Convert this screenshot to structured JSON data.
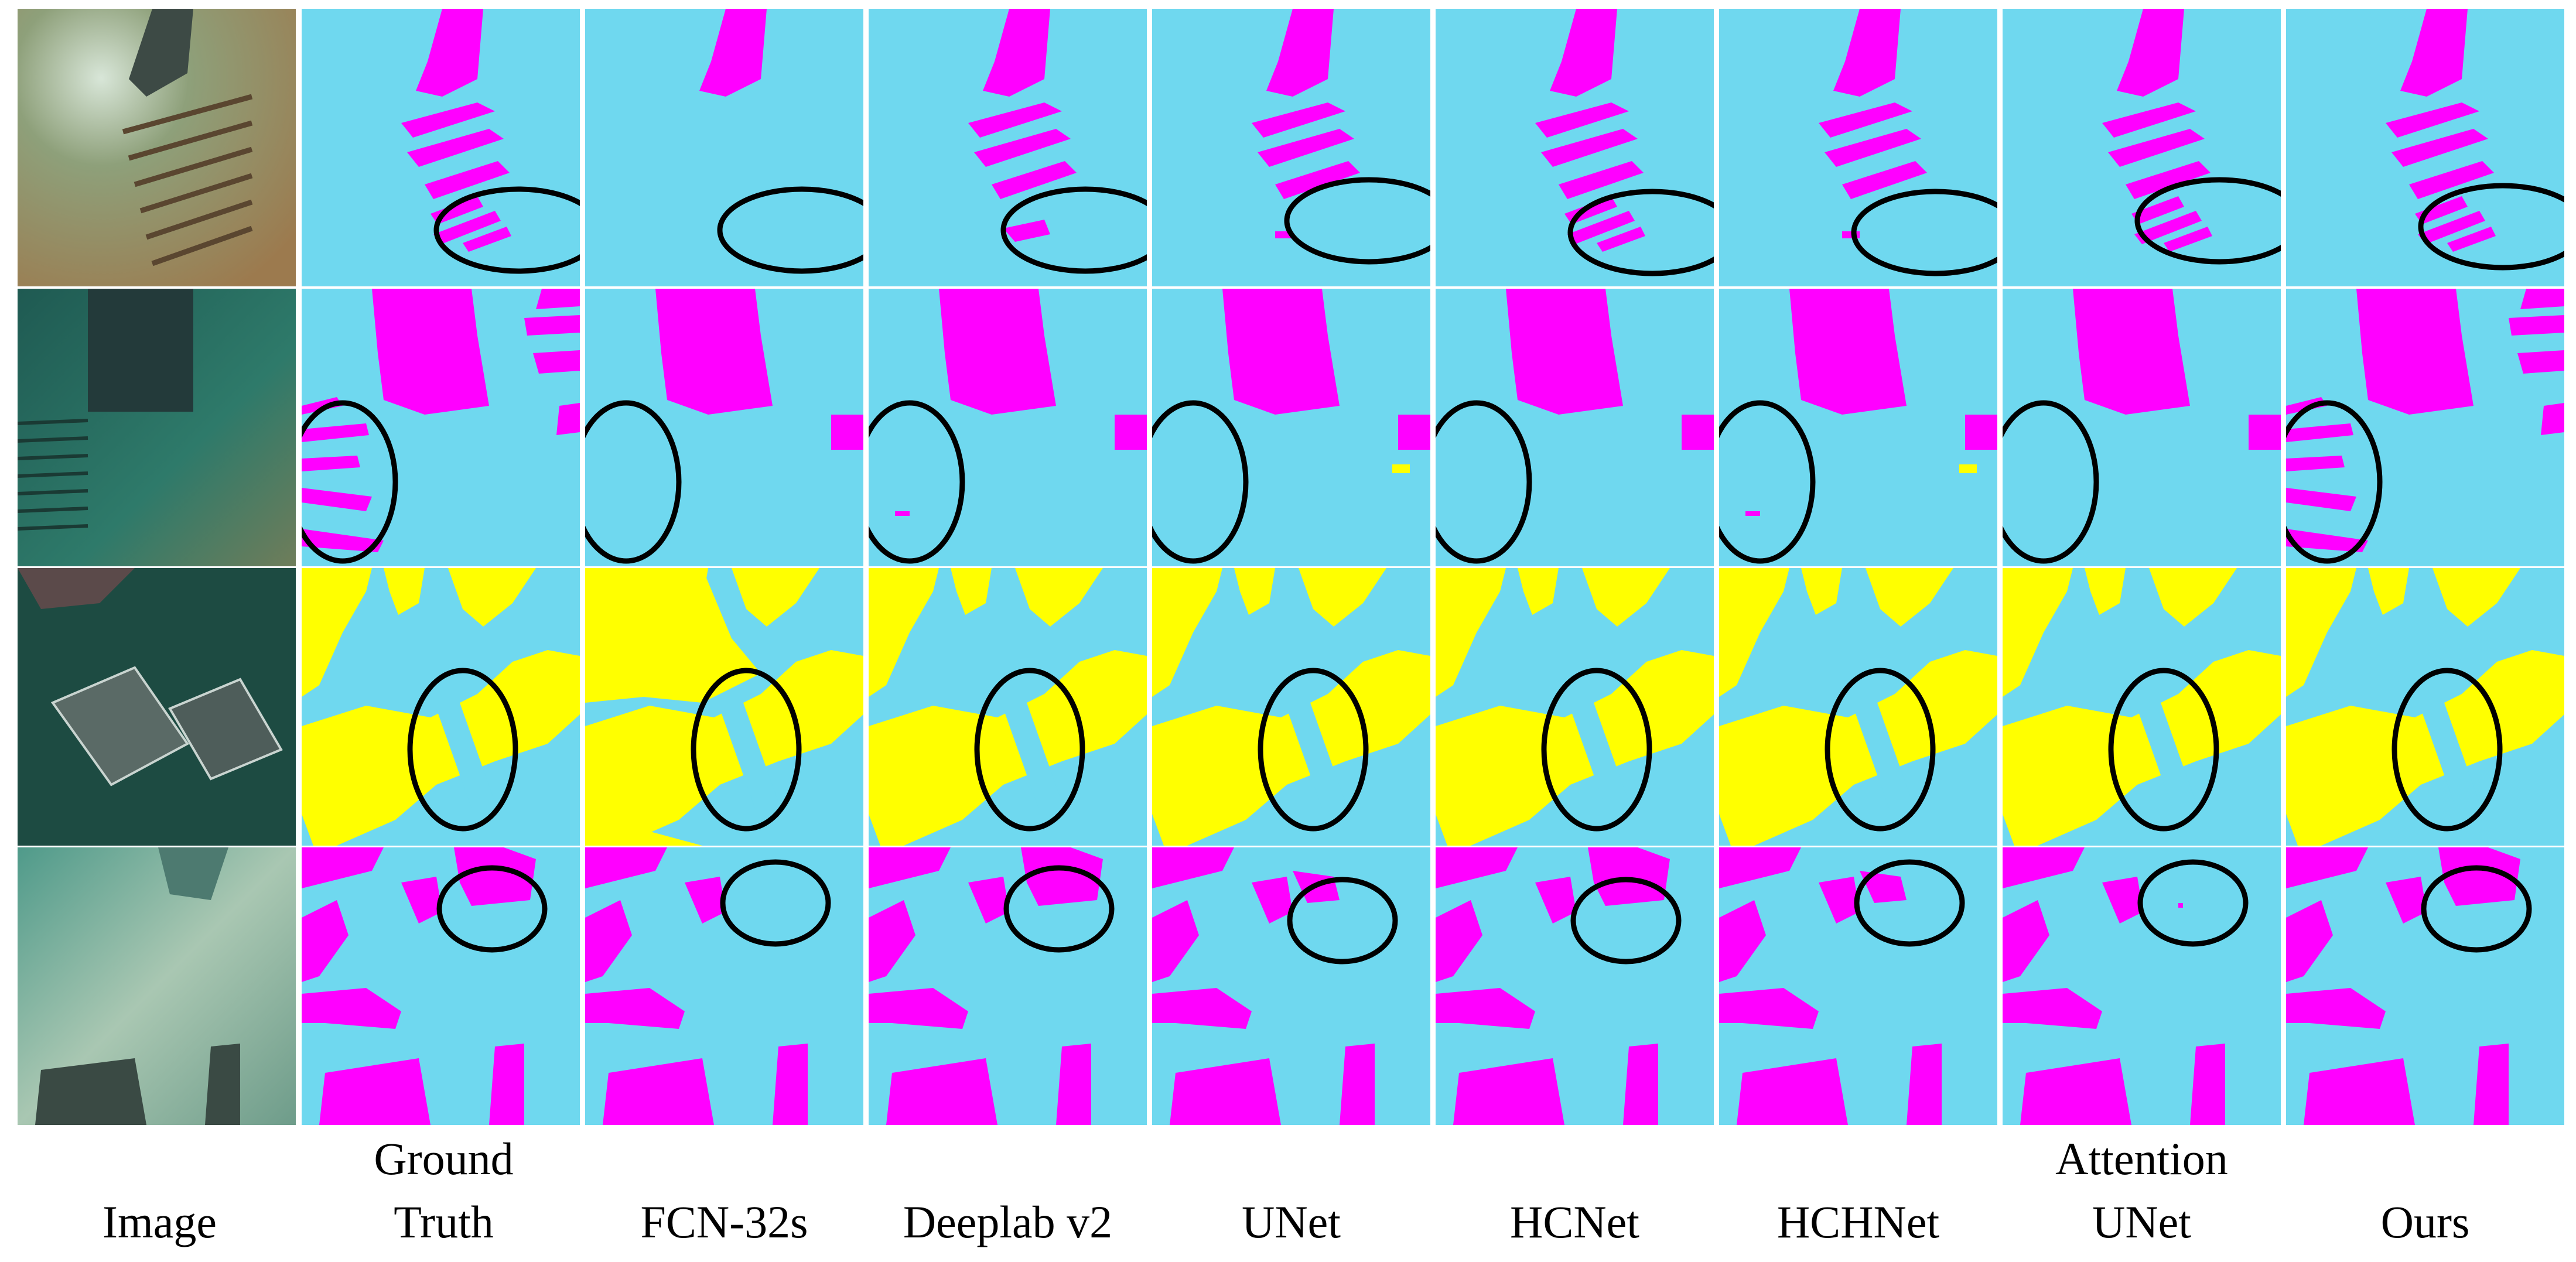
{
  "columns": [
    {
      "id": "image",
      "label_lines": [
        "Image"
      ]
    },
    {
      "id": "ground-truth",
      "label_lines": [
        "Ground",
        "Truth"
      ]
    },
    {
      "id": "fcn-32s",
      "label_lines": [
        "FCN-32s"
      ]
    },
    {
      "id": "deeplab-v2",
      "label_lines": [
        "Deeplab v2"
      ]
    },
    {
      "id": "unet",
      "label_lines": [
        "UNet"
      ]
    },
    {
      "id": "hcnet",
      "label_lines": [
        "HCNet"
      ]
    },
    {
      "id": "hchnet",
      "label_lines": [
        "HCHNet"
      ]
    },
    {
      "id": "attention-unet",
      "label_lines": [
        "Attention",
        "UNet"
      ]
    },
    {
      "id": "ours",
      "label_lines": [
        "Ours"
      ]
    }
  ],
  "colors": {
    "background_class": "#6fd8ef",
    "magenta_class": "#ff00ff",
    "yellow_class": "#ffff00",
    "highlight_ellipse": "#000000",
    "photo_row1": "#8f8660",
    "photo_row2": "#2c6f62",
    "photo_row3": "#1d4b42",
    "photo_row4": "#7fae9a"
  }
}
